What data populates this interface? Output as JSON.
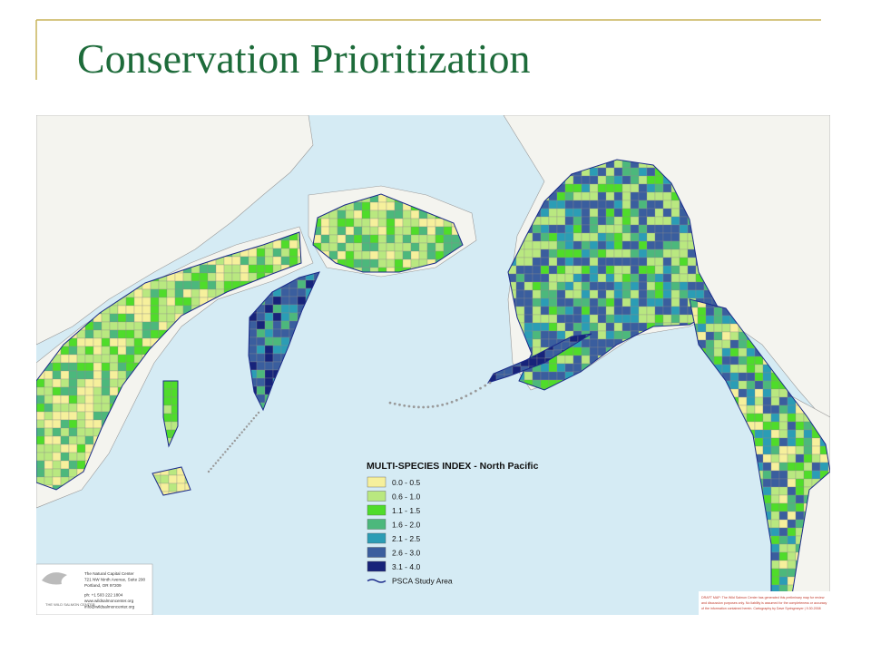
{
  "header": {
    "title": "Conservation Prioritization"
  },
  "map": {
    "legend": {
      "title": "MULTI-SPECIES INDEX - North Pacific",
      "items": [
        {
          "label": "0.0 - 0.5",
          "color": "#f6f09c"
        },
        {
          "label": "0.6 - 1.0",
          "color": "#b9e880"
        },
        {
          "label": "1.1 - 1.5",
          "color": "#4fdc2a"
        },
        {
          "label": "1.6 - 2.0",
          "color": "#4cb87c"
        },
        {
          "label": "2.1 - 2.5",
          "color": "#2b9db5"
        },
        {
          "label": "2.6 - 3.0",
          "color": "#3a5e9e"
        },
        {
          "label": "3.1 - 4.0",
          "color": "#17237a"
        }
      ],
      "study_area": "PSCA Study Area"
    },
    "credit": {
      "logo": "THE WILD SALMON CENTER",
      "lines": [
        "The Natural Capital Center",
        "721 NW Ninth Avenue, Suite 290",
        "Portland, OR 97209",
        "ph: +1 503 222 1804",
        "www.wildsalmoncenter.org",
        "info@wildsalmoncenter.org"
      ]
    },
    "disclaimer": [
      "DRAFT MAP: The Wild Salmon Center has generated this preliminary map for review",
      "and discussion purposes only. No liability is assumed for the completeness or accuracy",
      "of the information contained herein. Cartography by Dave Springmeyer | 9.30.2008"
    ]
  }
}
